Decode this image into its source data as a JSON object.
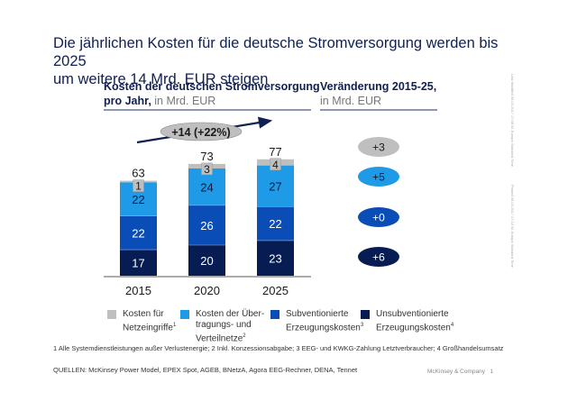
{
  "title_line1": "Die jährlichen Kosten für die deutsche Stromversorgung werden bis 2025",
  "title_line2": "um weitere 14 Mrd. EUR steigen",
  "left_header": {
    "bold": "Kosten der deutschen Stromversorgung",
    "bold2": "pro Jahr,",
    "unit": " in Mrd. EUR"
  },
  "right_header": {
    "bold": "Veränderung 2015-25,",
    "unit": "in Mrd. EUR"
  },
  "side_text": {
    "last_modified": "Last Modified 06.03.2017 17:08 W. Europe Standard Time",
    "printed": "Printed 06.03.2017 17:10 W. Europe Standard Time"
  },
  "footnote": "1 Alle Systemdienstleistungen außer Verlustenergie; 2 Inkl. Konzessionsabgabe; 3 EEG- und KWKG-Zahlung Letztverbraucher; 4 Großhandelsumsatz",
  "sources": "QUELLEN: McKinsey Power Model, EPEX Spot, AGEB, BNetzA, Agora EEG-Rechner, DENA, Tennet",
  "brand": "McKinsey & Company",
  "page_number": "1",
  "chart_data": {
    "type": "bar",
    "stacked": true,
    "title": "Kosten der deutschen Stromversorgung pro Jahr, in Mrd. EUR",
    "categories": [
      "2015",
      "2020",
      "2025"
    ],
    "totals": [
      63,
      73,
      77
    ],
    "series": [
      {
        "name": "Unsubventionierte Erzeugungskosten",
        "sup": "4",
        "color": "#061c52",
        "text_color": "#ffffff",
        "values": [
          17,
          20,
          23
        ]
      },
      {
        "name": "Subventionierte Erzeugungskosten",
        "sup": "3",
        "color": "#0b4db7",
        "text_color": "#ffffff",
        "values": [
          22,
          26,
          22
        ]
      },
      {
        "name": "Kosten der Übertragungs- und Verteilnetze",
        "sup": "2",
        "color": "#1e9ae6",
        "text_color": "#0b1a40",
        "values": [
          22,
          24,
          27
        ]
      },
      {
        "name": "Kosten für Netzeingriffe",
        "sup": "1",
        "color": "#bfbfbf",
        "text_color": "#1a1a1a",
        "values": [
          1,
          3,
          4
        ]
      }
    ],
    "growth_annotation": "+14  (+22%)",
    "change_2015_25": [
      {
        "series": "Kosten für Netzeingriffe",
        "label": "+3",
        "color": "#bfbfbf",
        "text_color": "#1a1a1a"
      },
      {
        "series": "Kosten der Übertragungs- und Verteilnetze",
        "label": "+5",
        "color": "#1e9ae6",
        "text_color": "#0b1a40"
      },
      {
        "series": "Subventionierte Erzeugungskosten",
        "label": "+0",
        "color": "#0b4db7",
        "text_color": "#ffffff"
      },
      {
        "series": "Unsubventionierte Erzeugungskosten",
        "label": "+6",
        "color": "#061c52",
        "text_color": "#ffffff"
      }
    ],
    "legend": [
      {
        "line1": "Kosten für",
        "line2": "Netzeingriffe",
        "line3": "",
        "sup": "1",
        "color": "#bfbfbf"
      },
      {
        "line1": "Kosten der Über-",
        "line2": "tragungs- und",
        "line3": "Verteilnetze",
        "sup": "2",
        "color": "#1e9ae6"
      },
      {
        "line1": "Subventionierte",
        "line2": "Erzeugungskosten",
        "line3": "",
        "sup": "3",
        "color": "#0b4db7"
      },
      {
        "line1": "Unsubventionierte",
        "line2": "Erzeugungskosten",
        "line3": "",
        "sup": "4",
        "color": "#061c52"
      }
    ],
    "legend_position": "bottom",
    "grid": false,
    "ylim": [
      0,
      80
    ]
  }
}
